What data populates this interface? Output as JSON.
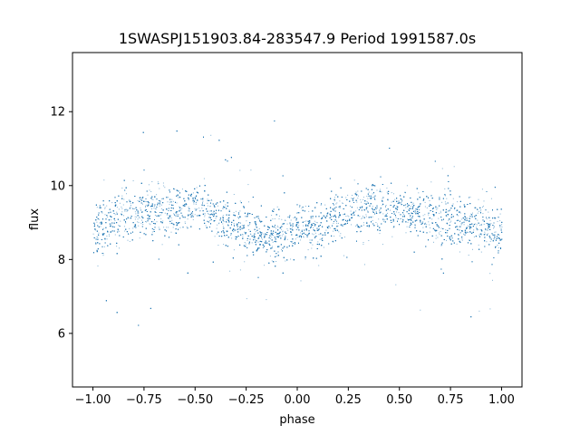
{
  "chart_data": {
    "type": "scatter",
    "title": "1SWASPJ151903.84-283547.9 Period 1991587.0s",
    "xlabel": "phase",
    "ylabel": "flux",
    "xlim": [
      -1.1,
      1.1
    ],
    "ylim": [
      4.55,
      13.6
    ],
    "xticks": [
      -1.0,
      -0.75,
      -0.5,
      -0.25,
      0.0,
      0.25,
      0.5,
      0.75,
      1.0
    ],
    "xtick_labels": [
      "−1.00",
      "−0.75",
      "−0.50",
      "−0.25",
      "0.00",
      "0.25",
      "0.50",
      "0.75",
      "1.00"
    ],
    "yticks": [
      6,
      8,
      10,
      12
    ],
    "ytick_labels": [
      "6",
      "8",
      "10",
      "12"
    ],
    "grid": false,
    "legend": "none",
    "point_color": "#1f77b4",
    "x_range": [
      -1.0,
      1.0
    ],
    "y_range": [
      4.9,
      13.3
    ],
    "approx_point_count": 20000,
    "envelope": {
      "phase": [
        -1.0,
        -0.875,
        -0.75,
        -0.625,
        -0.5,
        -0.375,
        -0.25,
        -0.125,
        0.0,
        0.125,
        0.25,
        0.375,
        0.5,
        0.625,
        0.75,
        0.875,
        1.0
      ],
      "center": [
        8.8,
        9.1,
        9.4,
        9.3,
        9.5,
        9.1,
        8.8,
        8.7,
        8.8,
        8.9,
        9.3,
        9.4,
        9.4,
        9.2,
        9.1,
        8.9,
        8.7
      ],
      "band_low": [
        8.0,
        8.2,
        8.5,
        8.6,
        8.8,
        8.4,
        8.0,
        7.9,
        8.0,
        8.1,
        8.4,
        8.6,
        8.7,
        8.5,
        8.2,
        8.0,
        7.9
      ],
      "band_high": [
        9.8,
        10.0,
        10.4,
        10.2,
        10.2,
        9.9,
        9.6,
        9.6,
        9.7,
        9.8,
        10.2,
        10.2,
        10.2,
        10.1,
        10.0,
        9.8,
        9.6
      ]
    }
  }
}
